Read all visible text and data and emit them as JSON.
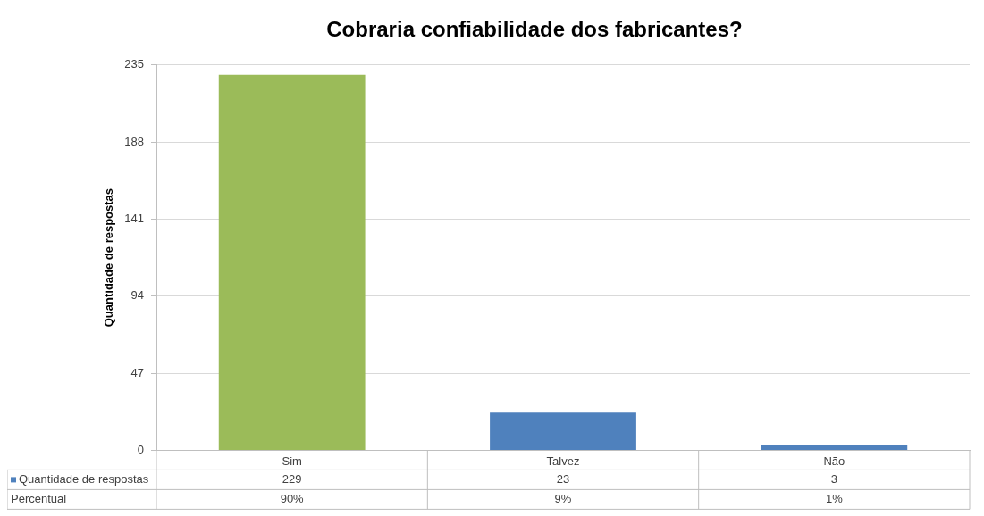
{
  "chart_data": {
    "type": "bar",
    "title": "Cobraria confiabilidade dos fabricantes?",
    "ylabel": "Quantidade de respostas",
    "categories": [
      "Sim",
      "Talvez",
      "Não"
    ],
    "series": [
      {
        "name": "Quantidade de respostas",
        "colors": [
          "#9bbb59",
          "#4f81bd",
          "#4f81bd"
        ],
        "values": [
          229,
          23,
          3
        ]
      }
    ],
    "ylim": [
      0,
      235
    ],
    "yticks": [
      0,
      47,
      94,
      141,
      188,
      235
    ],
    "grid": "y",
    "legend": "bottom",
    "data_labels": true,
    "annotations": [
      "Percentual",
      "90%",
      "9%",
      "1%"
    ]
  }
}
